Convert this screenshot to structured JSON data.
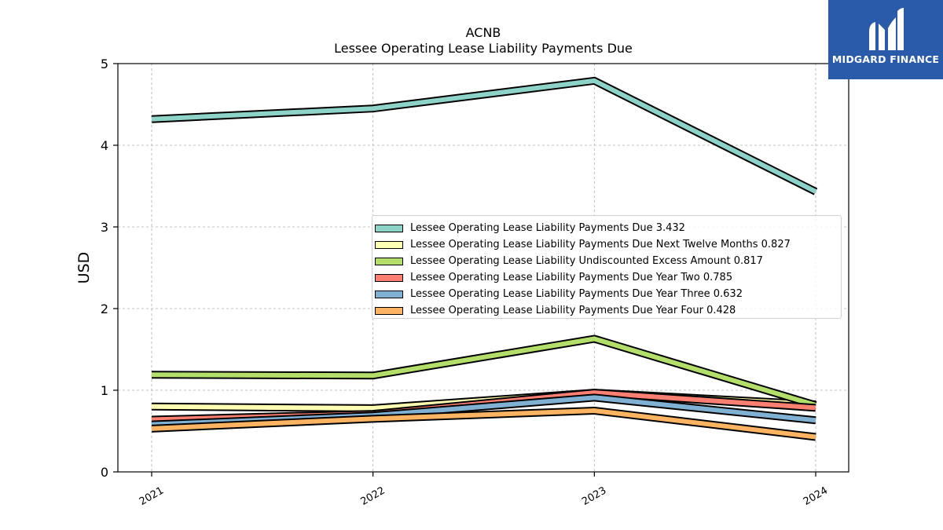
{
  "chart_data": {
    "type": "line",
    "title": "ACNB",
    "subtitle": "Lessee Operating Lease Liability Payments Due",
    "xlabel": "",
    "ylabel": "USD",
    "x": [
      "2021",
      "2022",
      "2023",
      "2024"
    ],
    "ylim": [
      0,
      5
    ],
    "yticks": [
      "0",
      "1",
      "2",
      "3",
      "4",
      "5"
    ],
    "grid": true,
    "legend_position": "center-right",
    "series": [
      {
        "name": "Lessee Operating Lease Liability Payments Due",
        "legend_value": "3.432",
        "values": [
          4.32,
          4.45,
          4.79,
          3.432
        ],
        "color": "#8dd3c7"
      },
      {
        "name": "Lessee Operating Lease Liability Payments Due Next Twelve Months",
        "legend_value": "0.827",
        "values": [
          0.8,
          0.78,
          0.97,
          0.827
        ],
        "color": "#ffffb3"
      },
      {
        "name": "Lessee Operating Lease Liability Undiscounted Excess Amount",
        "legend_value": "0.817",
        "values": [
          1.19,
          1.18,
          1.63,
          0.817
        ],
        "color": "#b3de69"
      },
      {
        "name": "Lessee Operating Lease Liability Payments Due Year Two",
        "legend_value": "0.785",
        "values": [
          0.64,
          0.71,
          0.97,
          0.785
        ],
        "color": "#fb8072"
      },
      {
        "name": "Lessee Operating Lease Liability Payments Due Year Three",
        "legend_value": "0.632",
        "values": [
          0.58,
          0.69,
          0.91,
          0.632
        ],
        "color": "#80b1d3"
      },
      {
        "name": "Lessee Operating Lease Liability Payments Due Year Four",
        "legend_value": "0.428",
        "values": [
          0.53,
          0.65,
          0.75,
          0.428
        ],
        "color": "#fdb462"
      }
    ]
  },
  "logo": {
    "text": "MIDGARD FINANCE",
    "color": "#2a5bab"
  }
}
